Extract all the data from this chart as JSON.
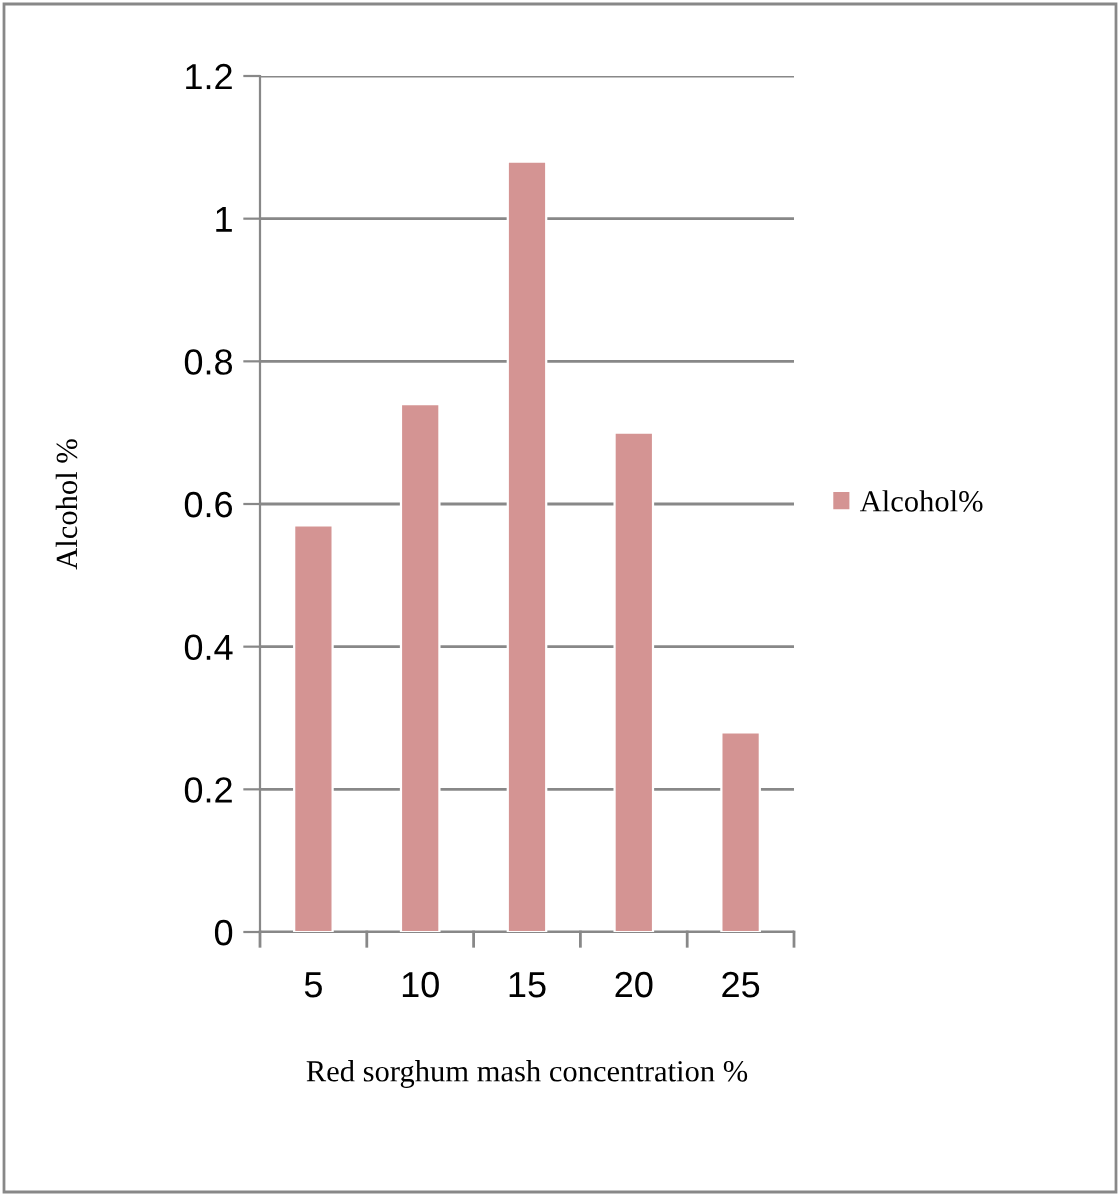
{
  "chart_data": {
    "type": "bar",
    "xlabel": "Red sorghum mash concentration %",
    "ylabel": "Alcohol %",
    "categories": [
      "5",
      "10",
      "15",
      "20",
      "25"
    ],
    "series": [
      {
        "name": "Alcohol%",
        "color": "#d49493",
        "values": [
          0.57,
          0.74,
          1.08,
          0.7,
          0.28
        ]
      }
    ],
    "ylim": [
      0,
      1.2
    ],
    "yticks": [
      0,
      0.2,
      0.4,
      0.6,
      0.8,
      1,
      1.2
    ],
    "grid": "y",
    "legend": "right"
  }
}
